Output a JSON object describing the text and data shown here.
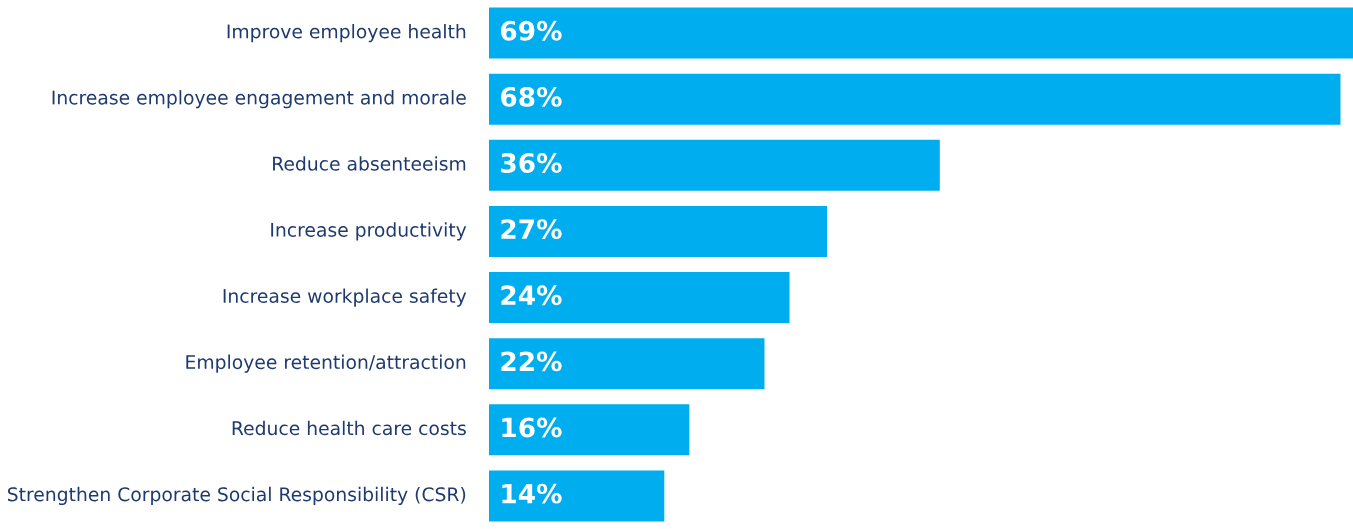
{
  "chart_data": {
    "type": "bar",
    "orientation": "horizontal",
    "categories": [
      "Improve employee health",
      "Increase employee engagement and morale",
      "Reduce absenteeism",
      "Increase productivity",
      "Increase workplace safety",
      "Employee retention/attraction",
      "Reduce health care costs",
      "Strengthen Corporate Social Responsibility (CSR)"
    ],
    "values": [
      69,
      68,
      36,
      27,
      24,
      22,
      16,
      14
    ],
    "value_labels": [
      "69%",
      "68%",
      "36%",
      "27%",
      "24%",
      "22%",
      "16%",
      "14%"
    ],
    "color": "#00aeef"
  }
}
